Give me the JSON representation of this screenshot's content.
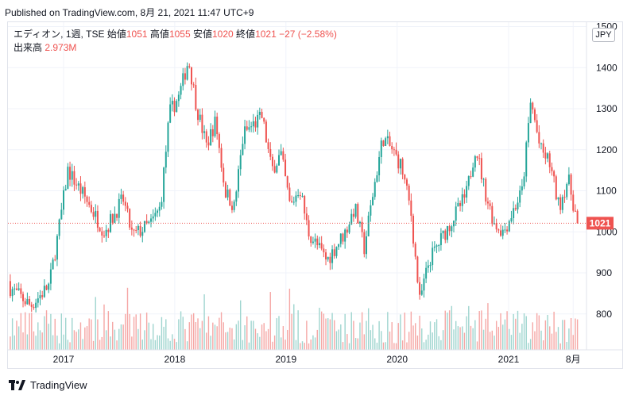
{
  "published": "Published on TradingView.com, 8月 21, 2021 11:47 UTC+9",
  "legend": {
    "symbol": "エディオン, 1週, TSE",
    "open_label": "始値",
    "open": "1051",
    "high_label": "高値",
    "high": "1055",
    "low_label": "安値",
    "low": "1020",
    "close_label": "終値",
    "close": "1021",
    "change": "−27 (−2.58%)",
    "volume_label": "出来高",
    "volume": "2.973M"
  },
  "currency": "JPY",
  "footer": {
    "brand": "TradingView"
  },
  "colors": {
    "up": "#26a69a",
    "down": "#ef5350",
    "up_vol": "#9fd5cf",
    "down_vol": "#f5a7a5",
    "grid": "#f0f3fa"
  },
  "chart_data": {
    "type": "candlestick",
    "title": "エディオン, 1週, TSE",
    "interval": "1週",
    "ylim": [
      720,
      1500
    ],
    "y_ticks": [
      "1500",
      "1400",
      "1300",
      "1200",
      "1100",
      "1000",
      "900",
      "800"
    ],
    "x_ticks": [
      "2017",
      "2018",
      "2019",
      "2020",
      "2021",
      "8月"
    ],
    "last_price": "1021",
    "last_ohlc": {
      "open": 1051,
      "high": 1055,
      "low": 1020,
      "close": 1021
    },
    "last_volume": "2.973M",
    "anchors": [
      [
        "2016-06",
        880
      ],
      [
        "2016-09",
        820
      ],
      [
        "2016-11",
        870
      ],
      [
        "2016-12",
        1000
      ],
      [
        "2017-01",
        1150
      ],
      [
        "2017-03",
        1080
      ],
      [
        "2017-05",
        1000
      ],
      [
        "2017-07",
        1080
      ],
      [
        "2017-08",
        990
      ],
      [
        "2017-10",
        1020
      ],
      [
        "2017-11",
        1060
      ],
      [
        "2017-12",
        1290
      ],
      [
        "2018-01",
        1330
      ],
      [
        "2018-02",
        1420
      ],
      [
        "2018-03",
        1300
      ],
      [
        "2018-04",
        1210
      ],
      [
        "2018-05",
        1270
      ],
      [
        "2018-06",
        1100
      ],
      [
        "2018-07",
        1060
      ],
      [
        "2018-08",
        1240
      ],
      [
        "2018-10",
        1280
      ],
      [
        "2018-11",
        1150
      ],
      [
        "2018-12",
        1190
      ],
      [
        "2019-01",
        1060
      ],
      [
        "2019-02",
        1110
      ],
      [
        "2019-03",
        1000
      ],
      [
        "2019-05",
        930
      ],
      [
        "2019-07",
        1000
      ],
      [
        "2019-08",
        1060
      ],
      [
        "2019-09",
        960
      ],
      [
        "2019-10",
        1100
      ],
      [
        "2019-11",
        1230
      ],
      [
        "2019-12",
        1200
      ],
      [
        "2020-01",
        1160
      ],
      [
        "2020-02",
        1050
      ],
      [
        "2020-03",
        830
      ],
      [
        "2020-04",
        930
      ],
      [
        "2020-05",
        970
      ],
      [
        "2020-06",
        1010
      ],
      [
        "2020-08",
        1090
      ],
      [
        "2020-09",
        1210
      ],
      [
        "2020-10",
        1100
      ],
      [
        "2020-11",
        1020
      ],
      [
        "2020-12",
        1000
      ],
      [
        "2021-01",
        1050
      ],
      [
        "2021-02",
        1100
      ],
      [
        "2021-03",
        1320
      ],
      [
        "2021-04",
        1200
      ],
      [
        "2021-05",
        1170
      ],
      [
        "2021-06",
        1060
      ],
      [
        "2021-07",
        1130
      ],
      [
        "2021-08",
        1021
      ]
    ]
  }
}
